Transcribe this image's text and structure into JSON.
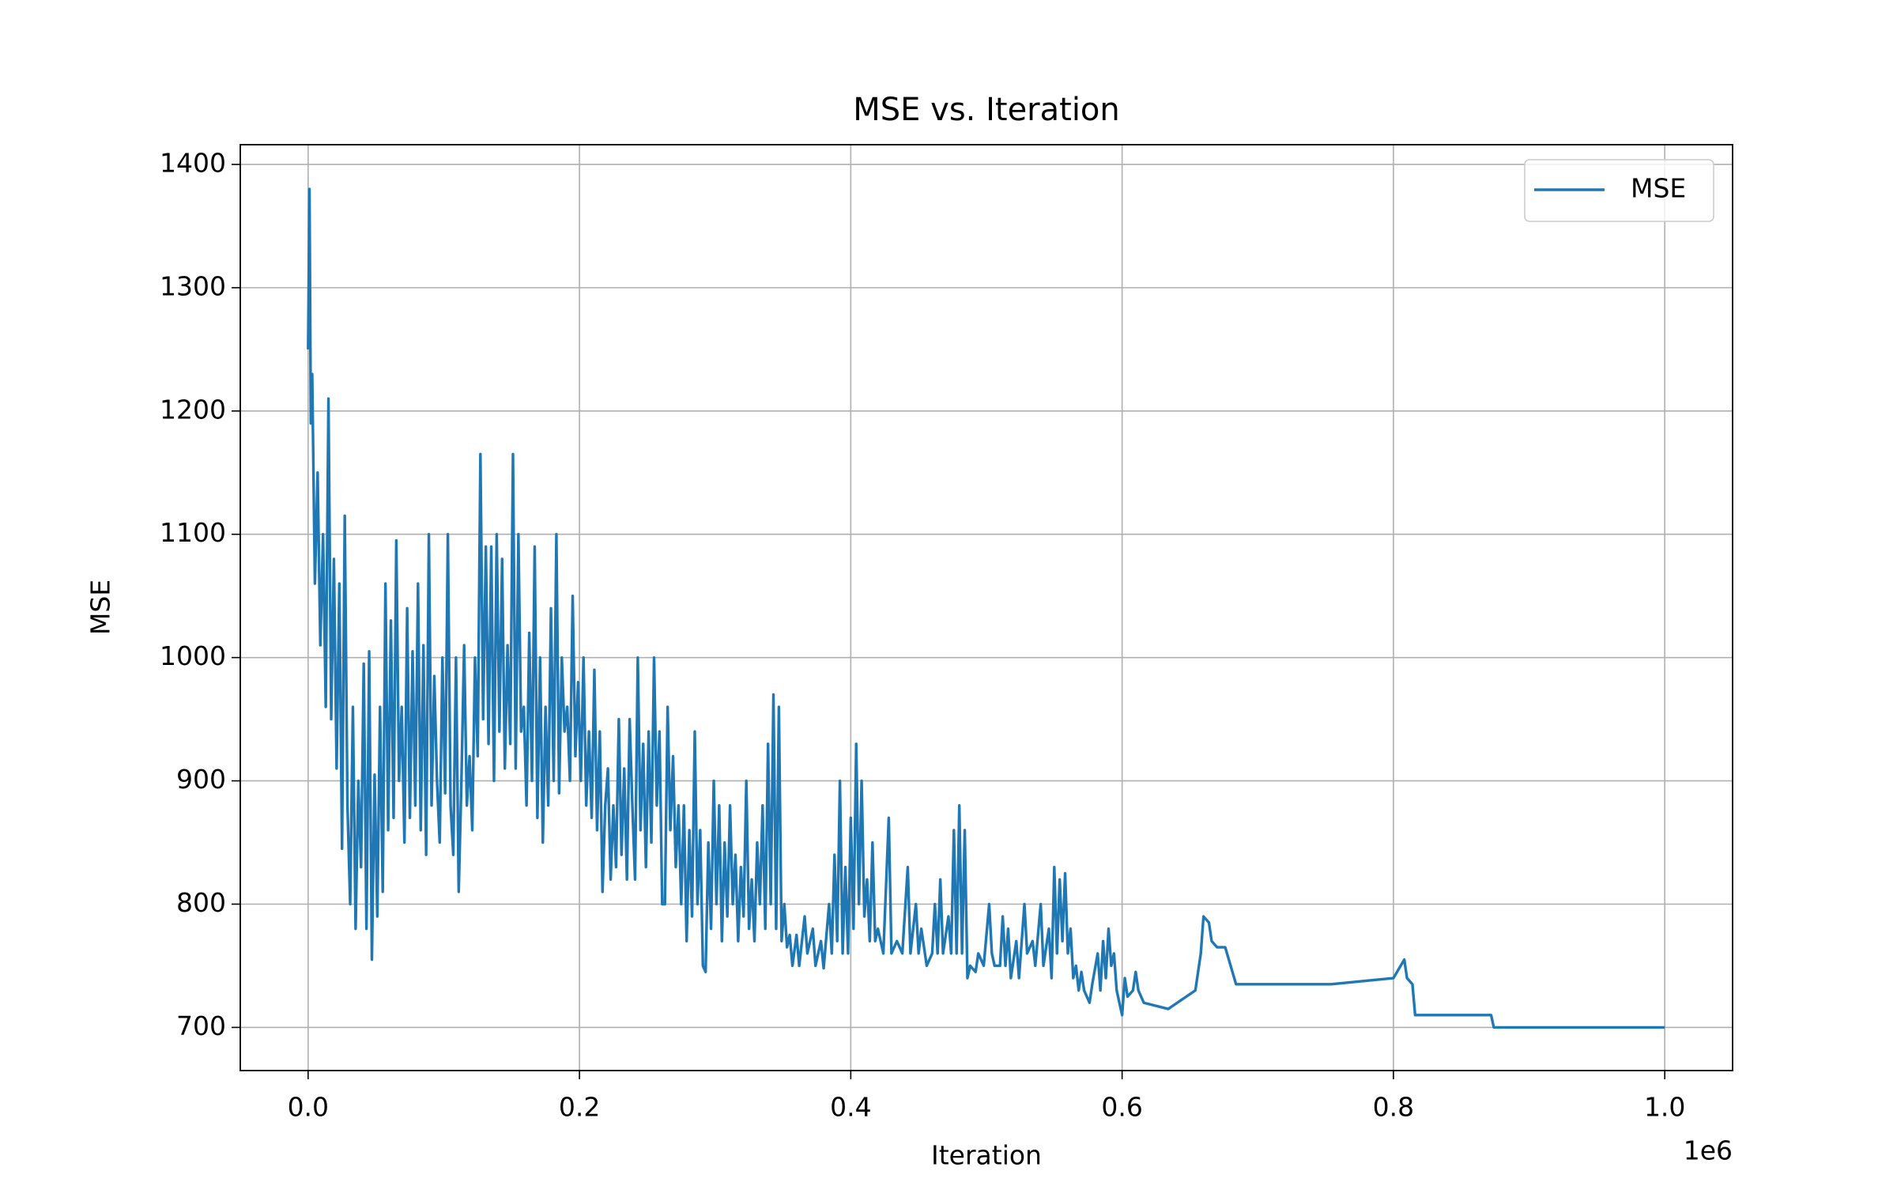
{
  "chart_data": {
    "type": "line",
    "title": "MSE vs. Iteration",
    "xlabel": "Iteration",
    "ylabel": "MSE",
    "x_offset_label": "1e6",
    "x": [
      0,
      1000,
      2000,
      3000,
      5000,
      7000,
      9000,
      11000,
      13000,
      15000,
      17000,
      19000,
      21000,
      23000,
      25000,
      27000,
      29000,
      31000,
      33000,
      35000,
      37000,
      39000,
      41000,
      43000,
      45000,
      47000,
      49000,
      51000,
      53000,
      55000,
      57000,
      59000,
      61000,
      63000,
      65000,
      67000,
      69000,
      71000,
      73000,
      75000,
      77000,
      79000,
      81000,
      83000,
      85000,
      87000,
      89000,
      91000,
      93000,
      95000,
      97000,
      99000,
      101000,
      103000,
      105000,
      107000,
      109000,
      111000,
      113000,
      115000,
      117000,
      119000,
      121000,
      123000,
      125000,
      127000,
      129000,
      131000,
      133000,
      135000,
      137000,
      139000,
      141000,
      143000,
      145000,
      147000,
      149000,
      151000,
      153000,
      155000,
      157000,
      159000,
      161000,
      163000,
      165000,
      167000,
      169000,
      171000,
      173000,
      175000,
      177000,
      179000,
      181000,
      183000,
      185000,
      187000,
      189000,
      191000,
      193000,
      195000,
      197000,
      199000,
      201000,
      203000,
      205000,
      207000,
      209000,
      211000,
      213000,
      215000,
      217000,
      219000,
      221000,
      223000,
      225000,
      227000,
      229000,
      231000,
      233000,
      235000,
      237000,
      239000,
      241000,
      243000,
      245000,
      247000,
      249000,
      251000,
      253000,
      255000,
      257000,
      259000,
      261000,
      263000,
      265000,
      267000,
      269000,
      271000,
      273000,
      275000,
      277000,
      279000,
      281000,
      283000,
      285000,
      287000,
      289000,
      291000,
      293000,
      295000,
      297000,
      299000,
      301000,
      303000,
      305000,
      307000,
      309000,
      311000,
      313000,
      315000,
      317000,
      319000,
      321000,
      323000,
      325000,
      327000,
      329000,
      331000,
      333000,
      335000,
      337000,
      339000,
      341000,
      343000,
      345000,
      347000,
      349000,
      351000,
      353000,
      355000,
      357000,
      360000,
      362000,
      366000,
      368000,
      372000,
      374000,
      378000,
      380000,
      384000,
      386000,
      388000,
      390000,
      392000,
      394000,
      396000,
      398000,
      400000,
      402000,
      404000,
      406000,
      408000,
      410000,
      412000,
      414000,
      416000,
      418000,
      420000,
      424000,
      428000,
      430000,
      434000,
      438000,
      442000,
      444000,
      448000,
      450000,
      452000,
      456000,
      460000,
      462000,
      464000,
      466000,
      468000,
      472000,
      474000,
      476000,
      478000,
      480000,
      482000,
      484000,
      486000,
      488000,
      492000,
      494000,
      498000,
      502000,
      504000,
      506000,
      510000,
      512000,
      514000,
      516000,
      518000,
      522000,
      524000,
      528000,
      530000,
      534000,
      536000,
      540000,
      542000,
      546000,
      548000,
      550000,
      552000,
      554000,
      556000,
      558000,
      560000,
      562000,
      564000,
      566000,
      568000,
      570000,
      572000,
      576000,
      578000,
      582000,
      584000,
      586000,
      588000,
      590000,
      592000,
      594000,
      596000,
      598000,
      600000,
      602000,
      604000,
      608000,
      610000,
      612000,
      616000,
      634000,
      654000,
      658000,
      660000,
      664000,
      666000,
      670000,
      676000,
      684000,
      754000,
      800000,
      808000,
      810000,
      814000,
      816000,
      872000,
      874000,
      1000000
    ],
    "series": [
      {
        "name": "MSE",
        "color": "#1f77b4",
        "values": [
          1250,
          1380,
          1190,
          1230,
          1060,
          1150,
          1010,
          1100,
          960,
          1210,
          950,
          1080,
          910,
          1060,
          845,
          1115,
          880,
          800,
          960,
          780,
          900,
          830,
          995,
          780,
          1005,
          755,
          905,
          790,
          960,
          810,
          1060,
          860,
          1030,
          870,
          1095,
          900,
          960,
          850,
          1040,
          870,
          1005,
          880,
          1060,
          860,
          1010,
          840,
          1100,
          880,
          985,
          900,
          850,
          1000,
          890,
          1100,
          880,
          840,
          1000,
          810,
          900,
          1010,
          880,
          920,
          860,
          1000,
          920,
          1165,
          950,
          1090,
          930,
          1090,
          900,
          1100,
          940,
          1080,
          910,
          1010,
          930,
          1165,
          910,
          1100,
          940,
          960,
          880,
          1020,
          900,
          1090,
          870,
          1000,
          850,
          960,
          880,
          1040,
          900,
          1100,
          890,
          1000,
          940,
          960,
          900,
          1050,
          920,
          980,
          900,
          1000,
          880,
          940,
          870,
          990,
          860,
          940,
          810,
          880,
          910,
          820,
          880,
          830,
          950,
          840,
          910,
          820,
          950,
          880,
          820,
          1000,
          860,
          930,
          830,
          940,
          850,
          1000,
          880,
          940,
          800,
          800,
          960,
          860,
          920,
          830,
          880,
          800,
          880,
          770,
          860,
          790,
          940,
          800,
          860,
          750,
          745,
          850,
          780,
          900,
          800,
          880,
          770,
          850,
          790,
          880,
          800,
          840,
          770,
          830,
          790,
          900,
          780,
          820,
          770,
          850,
          800,
          880,
          780,
          930,
          800,
          970,
          780,
          960,
          770,
          800,
          765,
          775,
          750,
          775,
          750,
          790,
          760,
          780,
          750,
          770,
          748,
          800,
          760,
          840,
          770,
          900,
          760,
          830,
          760,
          870,
          780,
          930,
          800,
          900,
          790,
          820,
          770,
          850,
          770,
          780,
          760,
          870,
          760,
          770,
          760,
          830,
          760,
          800,
          760,
          780,
          750,
          760,
          800,
          760,
          820,
          760,
          790,
          760,
          860,
          760,
          880,
          760,
          860,
          740,
          750,
          745,
          760,
          750,
          800,
          760,
          750,
          750,
          790,
          750,
          780,
          740,
          770,
          740,
          800,
          760,
          770,
          750,
          800,
          750,
          780,
          740,
          830,
          760,
          820,
          770,
          825,
          760,
          780,
          740,
          750,
          730,
          745,
          730,
          720,
          735,
          760,
          730,
          770,
          740,
          780,
          750,
          760,
          730,
          720,
          710,
          740,
          725,
          730,
          745,
          730,
          720,
          715,
          730,
          760,
          790,
          785,
          770,
          765,
          765,
          735,
          735,
          740,
          755,
          740,
          735,
          710,
          710,
          700,
          700
        ]
      }
    ],
    "xlim": [
      -50000,
      1050000
    ],
    "ylim": [
      665,
      1416
    ],
    "xticks": [
      {
        "value": 0,
        "label": "0.0"
      },
      {
        "value": 200000,
        "label": "0.2"
      },
      {
        "value": 400000,
        "label": "0.4"
      },
      {
        "value": 600000,
        "label": "0.6"
      },
      {
        "value": 800000,
        "label": "0.8"
      },
      {
        "value": 1000000,
        "label": "1.0"
      }
    ],
    "yticks": [
      700,
      800,
      900,
      1000,
      1100,
      1200,
      1300,
      1400
    ],
    "grid": true,
    "legend": "upper right"
  }
}
